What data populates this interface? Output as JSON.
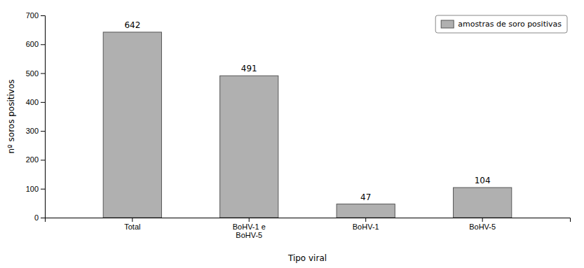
{
  "chart_data": {
    "type": "bar",
    "categories": [
      "Total",
      "BoHV-1 e\nBoHV-5",
      "BoHV-1",
      "BoHV-5"
    ],
    "series": [
      {
        "name": "amostras de soro positivas",
        "color": "#b0b0b0",
        "values": [
          642,
          491,
          47,
          104
        ]
      }
    ],
    "xlabel": "Tipo viral",
    "ylabel": "nº soros positivos",
    "ylim": [
      0,
      700
    ],
    "yticks": [
      0,
      100,
      200,
      300,
      400,
      500,
      600,
      700
    ],
    "grid": false,
    "legend": "upper right",
    "data_labels": true
  }
}
